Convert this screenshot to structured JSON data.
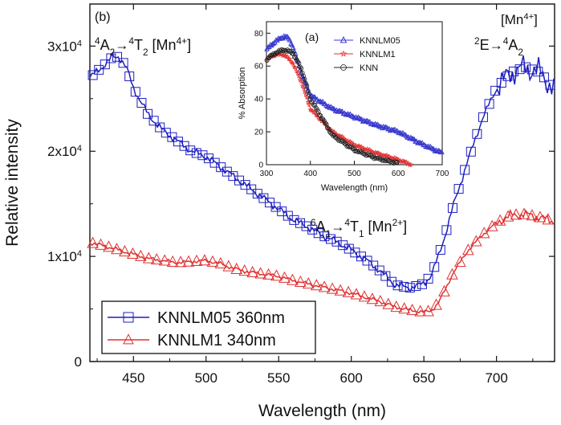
{
  "chart_data": [
    {
      "panel": "(b)",
      "type": "line",
      "xlabel": "Wavelength (nm)",
      "ylabel": "Relative intensity",
      "xlim": [
        420,
        740
      ],
      "ylim": [
        0,
        34000
      ],
      "xticks": [
        450,
        500,
        550,
        600,
        650,
        700
      ],
      "yticks": [
        {
          "value": 0,
          "label": "0"
        },
        {
          "value": 10000,
          "label": "1x10",
          "exp": "4"
        },
        {
          "value": 20000,
          "label": "2x10",
          "exp": "4"
        },
        {
          "value": 30000,
          "label": "3x10",
          "exp": "4"
        }
      ],
      "grid": false,
      "legend_position": "bottom-left",
      "annotations": [
        {
          "id": "a2t2",
          "parts": [
            [
              "sup",
              "4"
            ],
            [
              "t",
              "A"
            ],
            [
              "sub",
              "2"
            ],
            [
              "arrow",
              ""
            ],
            [
              "sup",
              "4"
            ],
            [
              "t",
              "T"
            ],
            [
              "sub",
              "2"
            ],
            [
              "t",
              " [Mn"
            ],
            [
              "sup",
              "4+"
            ],
            [
              "t",
              "]"
            ]
          ]
        },
        {
          "id": "a1t1",
          "parts": [
            [
              "sup",
              "6"
            ],
            [
              "t",
              "A"
            ],
            [
              "sub",
              "1"
            ],
            [
              "arrow",
              ""
            ],
            [
              "sup",
              "4"
            ],
            [
              "t",
              "T"
            ],
            [
              "sub",
              "1"
            ],
            [
              "t",
              " [Mn"
            ],
            [
              "sup",
              "2+"
            ],
            [
              "t",
              "]"
            ]
          ]
        },
        {
          "id": "mn4",
          "parts": [
            [
              "t",
              "[Mn"
            ],
            [
              "sup",
              "4+"
            ],
            [
              "t",
              "]"
            ]
          ]
        },
        {
          "id": "e2a2",
          "parts": [
            [
              "sup",
              "2"
            ],
            [
              "t",
              "E"
            ],
            [
              "arrow",
              ""
            ],
            [
              "sup",
              "4"
            ],
            [
              "t",
              "A"
            ],
            [
              "sub",
              "2"
            ]
          ]
        }
      ],
      "series": [
        {
          "name": "KNNLM05 360nm",
          "color": "#1f1fbf",
          "marker": "square",
          "x": [
            420,
            425,
            430,
            435,
            440,
            445,
            450,
            460,
            470,
            480,
            490,
            500,
            510,
            520,
            530,
            540,
            550,
            560,
            570,
            580,
            590,
            600,
            610,
            620,
            630,
            640,
            650,
            655,
            660,
            665,
            670,
            680,
            690,
            700,
            710,
            720,
            730,
            740
          ],
          "y": [
            27000,
            27600,
            28200,
            28900,
            29000,
            28000,
            26000,
            23500,
            22000,
            21000,
            20000,
            19500,
            18500,
            17500,
            16500,
            15500,
            14500,
            13500,
            12800,
            12000,
            11400,
            10600,
            9700,
            8600,
            7300,
            7000,
            7400,
            8200,
            10000,
            12200,
            14700,
            19000,
            23000,
            26000,
            27500,
            28000,
            27500,
            25800
          ]
        },
        {
          "name": "KNNLM1 340nm",
          "color": "#e03030",
          "marker": "triangle",
          "x": [
            420,
            430,
            440,
            450,
            460,
            470,
            480,
            490,
            500,
            510,
            520,
            530,
            540,
            550,
            560,
            570,
            580,
            590,
            600,
            610,
            620,
            630,
            640,
            650,
            655,
            660,
            665,
            670,
            680,
            690,
            700,
            710,
            720,
            730,
            740
          ],
          "y": [
            11300,
            11000,
            10600,
            10200,
            9800,
            9600,
            9400,
            9500,
            9600,
            9300,
            8800,
            8500,
            8300,
            8100,
            7700,
            7400,
            7100,
            6800,
            6500,
            6100,
            5700,
            5200,
            4900,
            4700,
            4800,
            5600,
            6900,
            8400,
            10500,
            12000,
            13200,
            13900,
            14000,
            13700,
            13300
          ]
        }
      ]
    },
    {
      "panel": "(a)",
      "type": "line",
      "inset": true,
      "xlabel": "Wavelength (nm)",
      "ylabel": "% Absorption",
      "xlim": [
        300,
        700
      ],
      "ylim": [
        0,
        87
      ],
      "xticks": [
        300,
        400,
        500,
        600,
        700
      ],
      "yticks": [
        0,
        20,
        40,
        60,
        80
      ],
      "grid": false,
      "legend_position": "top-right",
      "series": [
        {
          "name": "KNNLM05",
          "color": "#3a3ad0",
          "marker": "triangle-open",
          "x": [
            300,
            320,
            340,
            350,
            360,
            380,
            400,
            450,
            500,
            550,
            600,
            650,
            700
          ],
          "y": [
            70,
            75,
            78,
            77,
            72,
            55,
            42,
            34,
            29,
            24,
            20,
            13,
            7
          ]
        },
        {
          "name": "KNNLM1",
          "color": "#e03030",
          "marker": "star",
          "x": [
            300,
            320,
            340,
            360,
            380,
            400,
            450,
            500,
            550,
            600,
            630
          ],
          "y": [
            64,
            67,
            67,
            62,
            50,
            34,
            20,
            12,
            7,
            3,
            0
          ]
        },
        {
          "name": "KNN",
          "color": "#222222",
          "marker": "circle-open",
          "x": [
            300,
            320,
            340,
            360,
            380,
            400,
            450,
            500,
            550,
            580,
            600
          ],
          "y": [
            64,
            68,
            70,
            68,
            58,
            40,
            18,
            9,
            4,
            2,
            1
          ]
        }
      ]
    }
  ]
}
